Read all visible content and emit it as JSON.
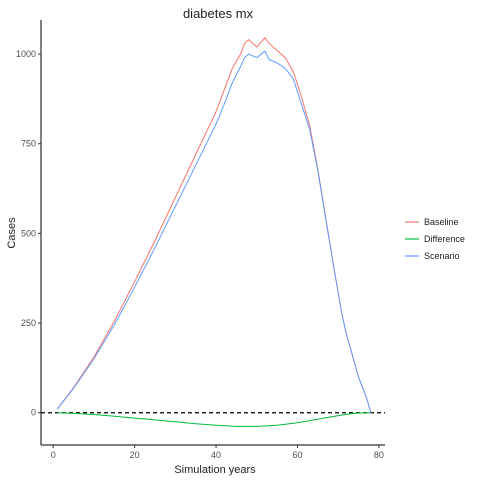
{
  "chart_data": {
    "type": "line",
    "title": "diabetes mx",
    "xlabel": "Simulation years",
    "ylabel": "Cases",
    "xlim": [
      -3,
      81.5
    ],
    "ylim": [
      -90,
      1095
    ],
    "x_ticks": [
      0,
      20,
      40,
      60,
      80
    ],
    "x_tick_labels": [
      "0",
      "20",
      "40",
      "60",
      "80"
    ],
    "y_ticks": [
      0,
      250,
      500,
      750,
      1000
    ],
    "y_tick_labels": [
      "0",
      "250",
      "500",
      "750",
      "1000"
    ],
    "grid": false,
    "legend_position": "right",
    "reference_line": {
      "y": 0,
      "style": "dashed",
      "color": "#000000"
    },
    "series": [
      {
        "name": "Baseline",
        "color": "#F8766D",
        "x": [
          1,
          5,
          10,
          15,
          20,
          25,
          30,
          35,
          40,
          42,
          44,
          46,
          47,
          48,
          50,
          52,
          53,
          55,
          57,
          59,
          61,
          63,
          65,
          67,
          69,
          71,
          72,
          75,
          76,
          77,
          78
        ],
        "y": [
          10,
          70,
          155,
          255,
          365,
          480,
          600,
          720,
          840,
          900,
          960,
          1000,
          1030,
          1040,
          1020,
          1045,
          1030,
          1010,
          990,
          950,
          880,
          800,
          680,
          540,
          400,
          270,
          220,
          100,
          70,
          40,
          0
        ]
      },
      {
        "name": "Difference",
        "color": "#00BA38",
        "x": [
          1,
          5,
          10,
          15,
          20,
          25,
          30,
          35,
          40,
          45,
          50,
          55,
          60,
          65,
          70,
          73,
          75,
          78
        ],
        "y": [
          0,
          -2,
          -5,
          -10,
          -15,
          -20,
          -25,
          -31,
          -35,
          -38,
          -38,
          -35,
          -28,
          -18,
          -8,
          -3,
          -1,
          0
        ]
      },
      {
        "name": "Scenario",
        "color": "#619CFF",
        "x": [
          1,
          5,
          10,
          15,
          20,
          25,
          30,
          35,
          40,
          42,
          44,
          46,
          47,
          48,
          50,
          52,
          53,
          55,
          57,
          59,
          61,
          63,
          65,
          67,
          69,
          71,
          72,
          75,
          76,
          77,
          78
        ],
        "y": [
          10,
          68,
          150,
          245,
          350,
          460,
          575,
          690,
          805,
          860,
          920,
          965,
          990,
          1000,
          990,
          1008,
          985,
          975,
          960,
          930,
          860,
          790,
          675,
          535,
          400,
          270,
          220,
          100,
          70,
          40,
          0
        ]
      }
    ]
  }
}
